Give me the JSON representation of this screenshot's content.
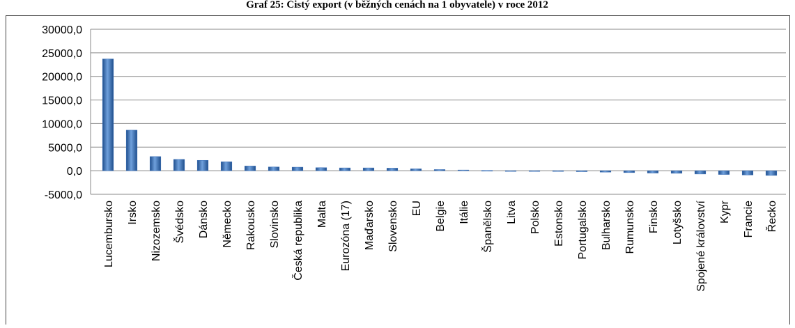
{
  "chart_data": {
    "type": "bar",
    "title": "Graf 25: Čistý export (v běžných cenách na 1 obyvatele) v roce 2012",
    "categories": [
      "Lucembursko",
      "Irsko",
      "Nizozemsko",
      "Švédsko",
      "Dánsko",
      "Německo",
      "Rakousko",
      "Slovinsko",
      "Česká republika",
      "Malta",
      "Eurozóna (17)",
      "Maďarsko",
      "Slovensko",
      "EU",
      "Belgie",
      "Itálie",
      "Španělsko",
      "Litva",
      "Polsko",
      "Estonsko",
      "Portugalsko",
      "Bulharsko",
      "Rumunsko",
      "Finsko",
      "Lotyšsko",
      "Spojené království",
      "Kypr",
      "Francie",
      "Řecko"
    ],
    "values": [
      23700,
      8600,
      3000,
      2400,
      2200,
      1900,
      1000,
      800,
      750,
      650,
      600,
      600,
      550,
      400,
      250,
      150,
      50,
      -50,
      -50,
      -150,
      -200,
      -300,
      -400,
      -500,
      -550,
      -700,
      -800,
      -900,
      -1000
    ],
    "color": "#3a6fb8",
    "ylim": [
      -5000,
      30000
    ],
    "yticks": [
      {
        "value": -5000,
        "label": "-5000,0"
      },
      {
        "value": 0,
        "label": "0,0"
      },
      {
        "value": 5000,
        "label": "5000,0"
      },
      {
        "value": 10000,
        "label": "10000,0"
      },
      {
        "value": 15000,
        "label": "15000,0"
      },
      {
        "value": 20000,
        "label": "20000,0"
      },
      {
        "value": 25000,
        "label": "25000,0"
      },
      {
        "value": 30000,
        "label": "30000,0"
      }
    ],
    "grid": true
  }
}
